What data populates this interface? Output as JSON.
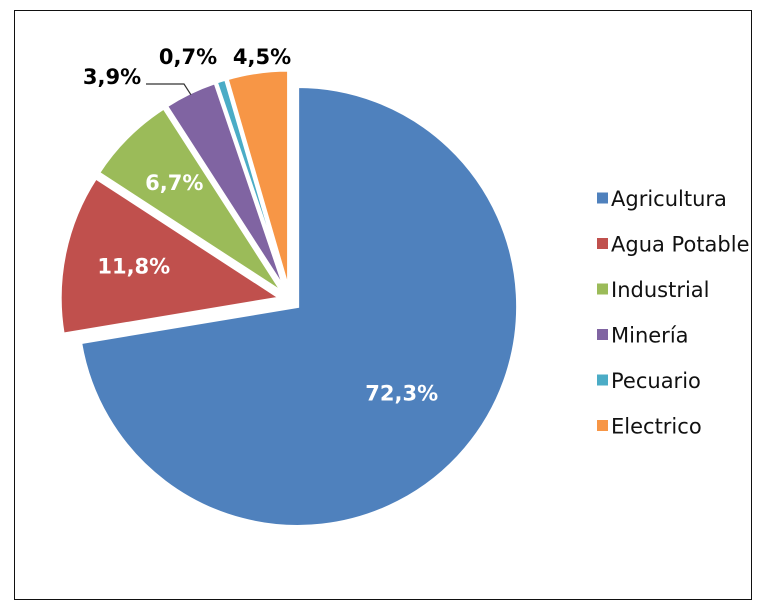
{
  "chart_data": {
    "type": "pie",
    "title": "",
    "categories": [
      "Agricultura",
      "Agua Potable",
      "Industrial",
      "Minería",
      "Pecuario",
      "Electrico"
    ],
    "values": [
      72.3,
      11.8,
      6.7,
      3.9,
      0.7,
      4.5
    ],
    "value_labels": [
      "72,3%",
      "11,8%",
      "6,7%",
      "3,9%",
      "0,7%",
      "4,5%"
    ],
    "colors": [
      "#4F81BD",
      "#C0504D",
      "#9BBB59",
      "#8064A2",
      "#4BACC6",
      "#F79646"
    ],
    "legend": {
      "placement": "right"
    },
    "exploded": true
  }
}
